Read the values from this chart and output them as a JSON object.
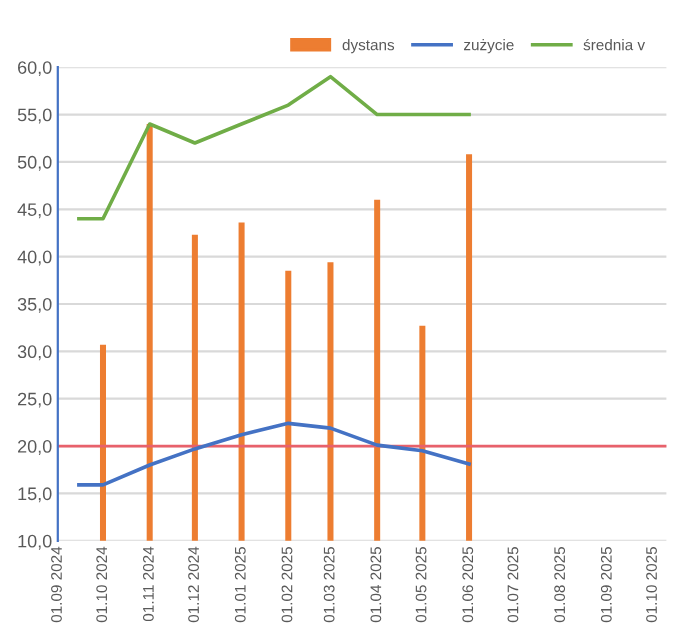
{
  "chart_data": {
    "type": "line",
    "series": [
      {
        "name": "dystans",
        "type": "bar",
        "color": "#ed7d31",
        "x": [
          "2024-10-01",
          "2024-11-01",
          "2024-12-01",
          "2025-01-01",
          "2025-02-01",
          "2025-03-01",
          "2025-04-01",
          "2025-05-01",
          "2025-06-01"
        ],
        "values": [
          30.7,
          54.0,
          42.3,
          43.6,
          38.5,
          39.4,
          46.0,
          32.7,
          50.8
        ]
      },
      {
        "name": "zużycie",
        "color": "#4472c4",
        "x": [
          "2024-09-15",
          "2024-10-01",
          "2024-11-01",
          "2024-12-01",
          "2025-01-01",
          "2025-02-01",
          "2025-03-01",
          "2025-04-01",
          "2025-05-01",
          "2025-06-01"
        ],
        "values": [
          15.9,
          15.9,
          18.0,
          19.7,
          21.2,
          22.4,
          21.9,
          20.1,
          19.5,
          18.1
        ]
      },
      {
        "name": "średnia v",
        "color": "#70ad47",
        "x": [
          "2024-09-15",
          "2024-10-01",
          "2024-11-01",
          "2024-12-01",
          "2025-01-01",
          "2025-02-01",
          "2025-03-01",
          "2025-04-01",
          "2025-05-01",
          "2025-06-01"
        ],
        "values": [
          44.0,
          44.0,
          54.0,
          52.0,
          54.0,
          56.0,
          59.0,
          55.0,
          55.0,
          55.0
        ]
      }
    ],
    "xlim": [
      "2024-09-01",
      "2025-10-10"
    ],
    "xticks": [
      {
        "value": "2024-09-01",
        "label": "01.09 2024"
      },
      {
        "value": "2024-10-01",
        "label": "01.10 2024"
      },
      {
        "value": "2024-11-01",
        "label": "01.11 2024"
      },
      {
        "value": "2024-12-01",
        "label": "01.12 2024"
      },
      {
        "value": "2025-01-01",
        "label": "01.01 2025"
      },
      {
        "value": "2025-02-01",
        "label": "01.02 2025"
      },
      {
        "value": "2025-03-01",
        "label": "01.03 2025"
      },
      {
        "value": "2025-04-01",
        "label": "01.04 2025"
      },
      {
        "value": "2025-05-01",
        "label": "01.05 2025"
      },
      {
        "value": "2025-06-01",
        "label": "01.06 2025"
      },
      {
        "value": "2025-07-01",
        "label": "01.07 2025"
      },
      {
        "value": "2025-08-01",
        "label": "01.08 2025"
      },
      {
        "value": "2025-09-01",
        "label": "01.09 2025"
      },
      {
        "value": "2025-10-01",
        "label": "01.10 2025"
      }
    ],
    "ylim": [
      10,
      60
    ],
    "yticks": [
      {
        "value": 10,
        "label": "10,0"
      },
      {
        "value": 15,
        "label": "15,0"
      },
      {
        "value": 20,
        "label": "20,0"
      },
      {
        "value": 25,
        "label": "25,0"
      },
      {
        "value": 30,
        "label": "30,0"
      },
      {
        "value": 35,
        "label": "35,0"
      },
      {
        "value": 40,
        "label": "40,0"
      },
      {
        "value": 45,
        "label": "45,0"
      },
      {
        "value": 50,
        "label": "50,0"
      },
      {
        "value": 55,
        "label": "55,0"
      },
      {
        "value": 60,
        "label": "60,0"
      }
    ],
    "ref_lines": [
      {
        "axis": "y",
        "value": 20,
        "color": "#e8616b"
      }
    ],
    "grid": "y",
    "legend": "top right",
    "marker": "none",
    "line_style": "solid"
  }
}
